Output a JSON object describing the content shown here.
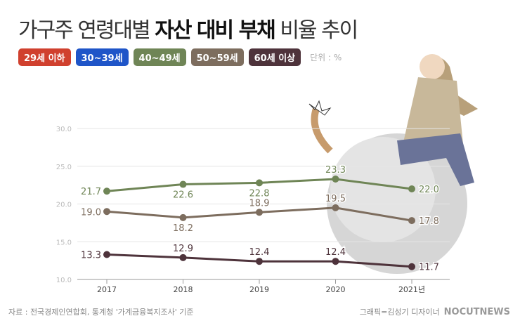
{
  "title": {
    "pre": "가구주 연령대별 ",
    "bold": "자산 대비 부채",
    "post": " 비율 추이"
  },
  "legend": [
    {
      "label": "29세 이하",
      "color": "#d0402e"
    },
    {
      "label": "30~39세",
      "color": "#1f55c8"
    },
    {
      "label": "40~49세",
      "color": "#6f8556"
    },
    {
      "label": "50~59세",
      "color": "#7d6d5e"
    },
    {
      "label": "60세 이상",
      "color": "#4e333b"
    }
  ],
  "unit": "단위 : %",
  "source": "자료 : 전국경제인연합회, 통계청 '가계금융복지조사' 기준",
  "credit": "그래픽=김성기 디자이너",
  "logo": "NOCUTNEWS",
  "chart_data": {
    "type": "line",
    "categories": [
      "2017",
      "2018",
      "2019",
      "2020",
      "2021년"
    ],
    "ylim": [
      10,
      30
    ],
    "yticks": [
      "10.0",
      "15.0",
      "20.0",
      "25.0",
      "30.0"
    ],
    "series": [
      {
        "name": "40~49세",
        "color": "#6f8556",
        "values": [
          21.7,
          22.6,
          22.8,
          23.3,
          22.0
        ],
        "labels": [
          "21.7",
          "22.6",
          "22.8",
          "23.3",
          "22.0"
        ]
      },
      {
        "name": "50~59세",
        "color": "#7d6d5e",
        "values": [
          19.0,
          18.2,
          18.9,
          19.5,
          17.8
        ],
        "labels": [
          "19.0",
          "18.2",
          "18.9",
          "19.5",
          "17.8"
        ]
      },
      {
        "name": "60세 이상",
        "color": "#4e333b",
        "values": [
          13.3,
          12.9,
          12.4,
          12.4,
          11.7
        ],
        "labels": [
          "13.3",
          "12.9",
          "12.4",
          "12.4",
          "11.7"
        ]
      }
    ]
  }
}
